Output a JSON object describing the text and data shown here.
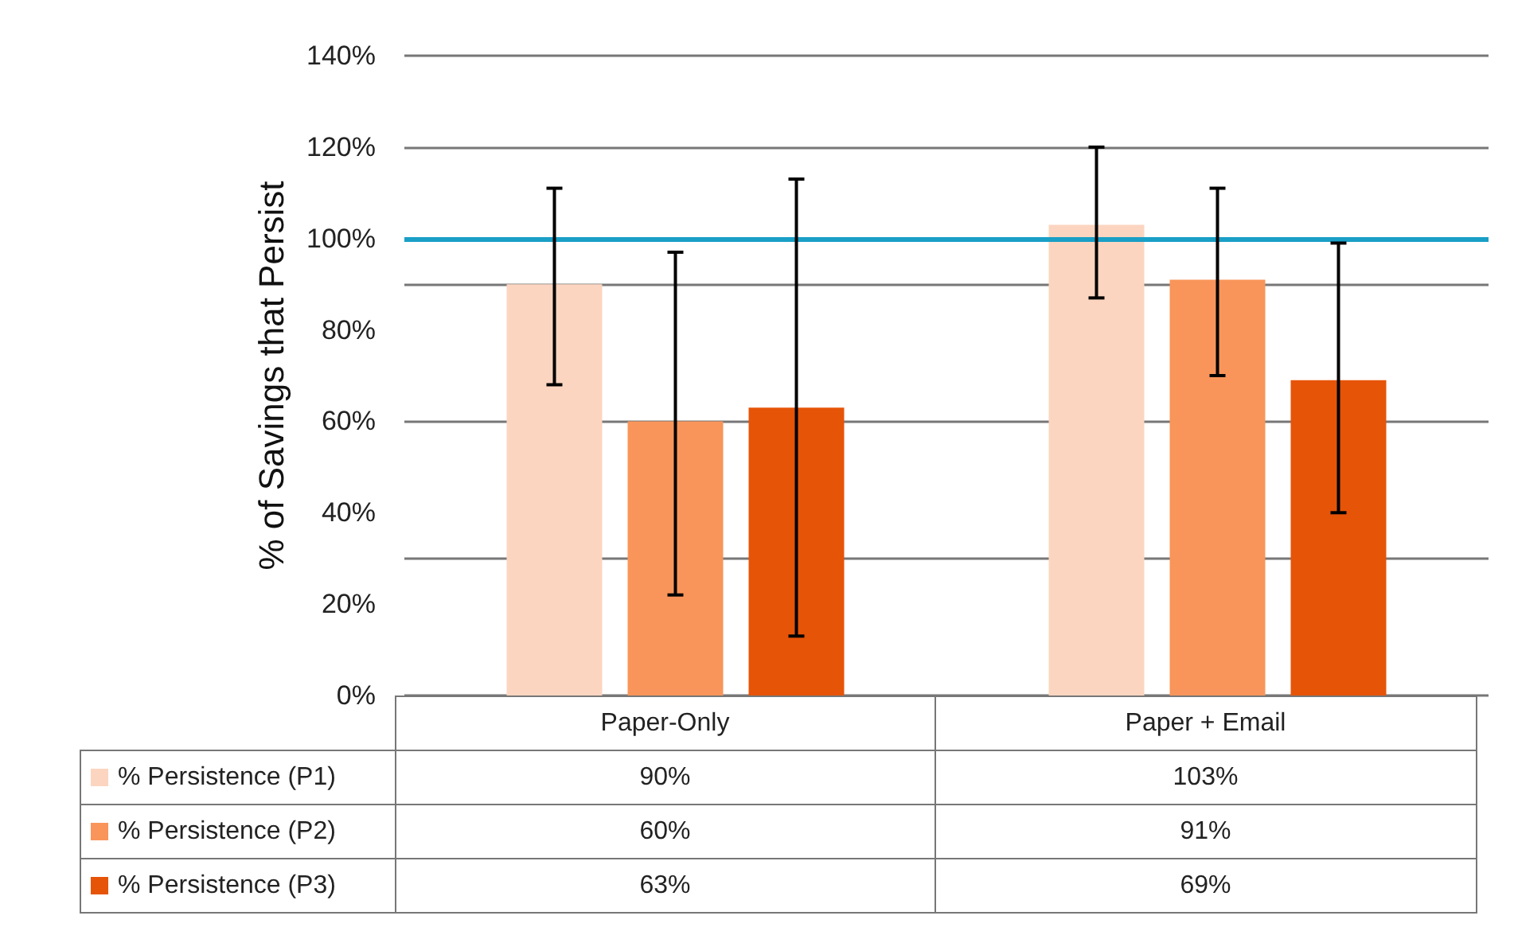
{
  "chart_data": {
    "type": "bar",
    "ylabel": "% of Savings that Persist",
    "categories": [
      "Paper-Only",
      "Paper + Email"
    ],
    "series": [
      {
        "name": "% Persistence (P1)",
        "color": "#fcd5c0",
        "values": [
          90,
          103
        ],
        "errors": [
          [
            68,
            111
          ],
          [
            87,
            120
          ]
        ],
        "value_labels": [
          "90%",
          "103%"
        ]
      },
      {
        "name": "% Persistence (P2)",
        "color": "#f9955a",
        "values": [
          60,
          91
        ],
        "errors": [
          [
            22,
            97
          ],
          [
            70,
            111
          ]
        ],
        "value_labels": [
          "60%",
          "91%"
        ]
      },
      {
        "name": "% Persistence (P3)",
        "color": "#e65408",
        "values": [
          63,
          69
        ],
        "errors": [
          [
            13,
            113
          ],
          [
            40,
            99
          ]
        ],
        "value_labels": [
          "63%",
          "69%"
        ]
      }
    ],
    "ylim": [
      0,
      140
    ],
    "yticks": [
      {
        "value": 0,
        "label": "0%"
      },
      {
        "value": 20,
        "label": "20%"
      },
      {
        "value": 40,
        "label": "40%"
      },
      {
        "value": 60,
        "label": "60%"
      },
      {
        "value": 80,
        "label": "80%"
      },
      {
        "value": 100,
        "label": "100%"
      },
      {
        "value": 120,
        "label": "120%"
      },
      {
        "value": 140,
        "label": "140%"
      }
    ],
    "ref_lines": [
      {
        "axis": "y",
        "value": 100,
        "label": null,
        "color": "#1a9fc6"
      }
    ],
    "grid": "y",
    "legend": "bottom"
  }
}
